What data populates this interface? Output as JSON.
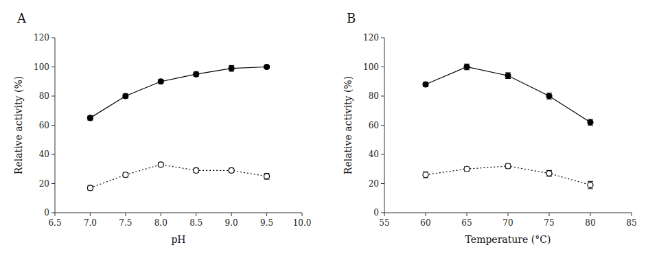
{
  "chart_data": [
    {
      "type": "line",
      "title": "A",
      "xlabel": "pH",
      "ylabel": "Relative activity (%)",
      "xlim": [
        6.5,
        10.0
      ],
      "ylim": [
        0,
        120
      ],
      "xticks": [
        6.5,
        {
          "value": 7.0,
          "label": "7.0"
        },
        7.5,
        {
          "value": 8.0,
          "label": "8.0"
        },
        8.5,
        {
          "value": 9.0,
          "label": "9.0"
        },
        9.5,
        {
          "value": 10.0,
          "label": "10.0"
        }
      ],
      "yticks": [
        0,
        20,
        40,
        60,
        80,
        100,
        120
      ],
      "series": [
        {
          "color": "#000000",
          "marker": "circle",
          "line_style": "solid",
          "x": [
            7.0,
            7.5,
            8.0,
            8.5,
            9.0,
            9.5
          ],
          "values": [
            65,
            80,
            90,
            95,
            99,
            100
          ],
          "errors": [
            1.5,
            1.5,
            1.5,
            1.5,
            2.0,
            1.0
          ]
        },
        {
          "color": "#000000",
          "marker": "circle-open",
          "line_style": "dotted",
          "x": [
            7.0,
            7.5,
            8.0,
            8.5,
            9.0,
            9.5
          ],
          "values": [
            17,
            26,
            33,
            29,
            29,
            25
          ],
          "errors": [
            1.5,
            1.5,
            1.5,
            1.5,
            1.5,
            2.0
          ]
        }
      ]
    },
    {
      "type": "line",
      "title": "B",
      "xlabel": "Temperature (°C)",
      "ylabel": "Relative activity (%)",
      "xlim": [
        55,
        85
      ],
      "ylim": [
        0,
        120
      ],
      "xticks": [
        55,
        60,
        65,
        70,
        75,
        80,
        85
      ],
      "yticks": [
        0,
        20,
        40,
        60,
        80,
        100,
        120
      ],
      "series": [
        {
          "color": "#000000",
          "marker": "circle",
          "line_style": "solid",
          "x": [
            60,
            65,
            70,
            75,
            80
          ],
          "values": [
            88,
            100,
            94,
            80,
            62
          ],
          "errors": [
            1.5,
            2.0,
            2.0,
            2.0,
            2.0
          ]
        },
        {
          "color": "#000000",
          "marker": "circle-open",
          "line_style": "dotted",
          "x": [
            60,
            65,
            70,
            75,
            80
          ],
          "values": [
            26,
            30,
            32,
            27,
            19
          ],
          "errors": [
            2.0,
            1.5,
            1.5,
            2.0,
            2.5
          ]
        }
      ]
    }
  ]
}
